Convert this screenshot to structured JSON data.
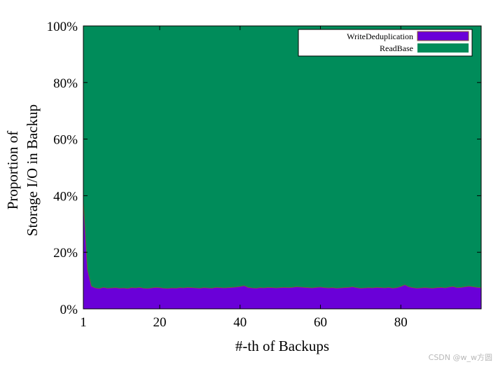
{
  "chart_data": {
    "type": "area",
    "stacked": true,
    "normalized": true,
    "xlabel": "#-th of Backups",
    "ylabel_line1": "Proportion of",
    "ylabel_line2": "Storage I/O in Backup",
    "xlim": [
      1,
      100
    ],
    "ylim": [
      0,
      100
    ],
    "x_ticks": [
      "1",
      "20",
      "40",
      "60",
      "80"
    ],
    "x_tick_values": [
      1,
      20,
      40,
      60,
      80
    ],
    "y_ticks": [
      "0%",
      "20%",
      "40%",
      "60%",
      "80%",
      "100%"
    ],
    "y_tick_values": [
      0,
      20,
      40,
      60,
      80,
      100
    ],
    "grid": false,
    "legend_position": "top-right",
    "series": [
      {
        "name": "WriteDeduplication",
        "color": "#6a00d8",
        "values": [
          38.0,
          14.0,
          8.0,
          7.4,
          7.2,
          7.6,
          7.3,
          7.4,
          7.5,
          7.3,
          7.4,
          7.2,
          7.5,
          7.4,
          7.6,
          7.3,
          7.2,
          7.4,
          7.6,
          7.5,
          7.3,
          7.2,
          7.4,
          7.3,
          7.5,
          7.4,
          7.6,
          7.5,
          7.4,
          7.3,
          7.5,
          7.4,
          7.3,
          7.6,
          7.5,
          7.4,
          7.5,
          7.6,
          7.7,
          7.9,
          8.2,
          7.6,
          7.4,
          7.3,
          7.5,
          7.4,
          7.6,
          7.5,
          7.4,
          7.5,
          7.6,
          7.5,
          7.6,
          7.8,
          7.7,
          7.6,
          7.5,
          7.4,
          7.6,
          7.7,
          7.5,
          7.4,
          7.5,
          7.3,
          7.4,
          7.5,
          7.6,
          7.8,
          7.5,
          7.3,
          7.4,
          7.5,
          7.4,
          7.6,
          7.5,
          7.4,
          7.6,
          7.3,
          7.5,
          7.9,
          8.5,
          7.8,
          7.5,
          7.3,
          7.4,
          7.5,
          7.4,
          7.3,
          7.5,
          7.6,
          7.4,
          7.7,
          7.9,
          7.5,
          7.6,
          7.8,
          8.0,
          7.8,
          7.6,
          7.5
        ]
      },
      {
        "name": "ReadBase",
        "color": "#008c5a",
        "values": "remainder-to-100"
      }
    ]
  },
  "watermark": "CSDN @w_w方圆"
}
